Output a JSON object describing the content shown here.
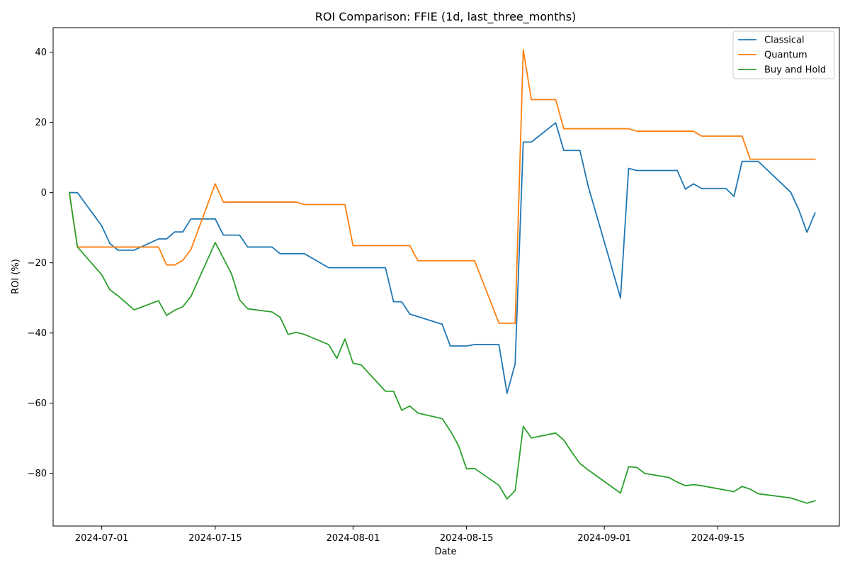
{
  "chart_data": {
    "type": "line",
    "title": "ROI Comparison: FFIE (1d, last_three_months)",
    "xlabel": "Date",
    "ylabel": "ROI (%)",
    "xlim": [
      "2024-06-25",
      "2024-09-30"
    ],
    "ylim": [
      -95,
      47
    ],
    "x_ticks": [
      "2024-07-01",
      "2024-07-15",
      "2024-08-01",
      "2024-08-15",
      "2024-09-01",
      "2024-09-15"
    ],
    "y_ticks": [
      40,
      20,
      0,
      -20,
      -40,
      -60,
      -80
    ],
    "y_tick_labels": [
      "40",
      "20",
      "0",
      "−20",
      "−40",
      "−60",
      "−80"
    ],
    "grid": false,
    "legend_position": "top-right",
    "series": [
      {
        "name": "Classical",
        "color": "#1f77b4",
        "points": [
          [
            "2024-06-27",
            0
          ],
          [
            "2024-06-28",
            0
          ],
          [
            "2024-07-01",
            -9.5
          ],
          [
            "2024-07-02",
            -14.5
          ],
          [
            "2024-07-03",
            -16.4
          ],
          [
            "2024-07-05",
            -16.4
          ],
          [
            "2024-07-08",
            -13.2
          ],
          [
            "2024-07-09",
            -13.2
          ],
          [
            "2024-07-10",
            -11.2
          ],
          [
            "2024-07-11",
            -11.2
          ],
          [
            "2024-07-12",
            -7.5
          ],
          [
            "2024-07-15",
            -7.5
          ],
          [
            "2024-07-16",
            -12.1
          ],
          [
            "2024-07-18",
            -12.1
          ],
          [
            "2024-07-19",
            -15.5
          ],
          [
            "2024-07-22",
            -15.5
          ],
          [
            "2024-07-23",
            -17.4
          ],
          [
            "2024-07-26",
            -17.4
          ],
          [
            "2024-07-29",
            -21.4
          ],
          [
            "2024-08-05",
            -21.4
          ],
          [
            "2024-08-06",
            -31.1
          ],
          [
            "2024-08-07",
            -31.1
          ],
          [
            "2024-08-08",
            -34.6
          ],
          [
            "2024-08-12",
            -37.5
          ],
          [
            "2024-08-13",
            -43.7
          ],
          [
            "2024-08-15",
            -43.7
          ],
          [
            "2024-08-16",
            -43.3
          ],
          [
            "2024-08-19",
            -43.3
          ],
          [
            "2024-08-20",
            -57.2
          ],
          [
            "2024-08-21",
            -48.8
          ],
          [
            "2024-08-22",
            14.4
          ],
          [
            "2024-08-23",
            14.4
          ],
          [
            "2024-08-26",
            19.9
          ],
          [
            "2024-08-27",
            12.0
          ],
          [
            "2024-08-29",
            12.0
          ],
          [
            "2024-08-30",
            1.9
          ],
          [
            "2024-09-03",
            -30.0
          ],
          [
            "2024-09-04",
            6.9
          ],
          [
            "2024-09-05",
            6.3
          ],
          [
            "2024-09-10",
            6.3
          ],
          [
            "2024-09-11",
            1.0
          ],
          [
            "2024-09-12",
            2.5
          ],
          [
            "2024-09-13",
            1.2
          ],
          [
            "2024-09-16",
            1.2
          ],
          [
            "2024-09-17",
            -1.1
          ],
          [
            "2024-09-18",
            8.9
          ],
          [
            "2024-09-20",
            8.9
          ],
          [
            "2024-09-24",
            0.1
          ],
          [
            "2024-09-25",
            -4.9
          ],
          [
            "2024-09-26",
            -11.3
          ],
          [
            "2024-09-27",
            -5.8
          ]
        ]
      },
      {
        "name": "Quantum",
        "color": "#ff7f0e",
        "points": [
          [
            "2024-06-27",
            0
          ],
          [
            "2024-06-28",
            -15.5
          ],
          [
            "2024-07-08",
            -15.5
          ],
          [
            "2024-07-09",
            -20.6
          ],
          [
            "2024-07-10",
            -20.6
          ],
          [
            "2024-07-11",
            -19.3
          ],
          [
            "2024-07-12",
            -16.2
          ],
          [
            "2024-07-15",
            2.5
          ],
          [
            "2024-07-16",
            -2.7
          ],
          [
            "2024-07-25",
            -2.7
          ],
          [
            "2024-07-26",
            -3.4
          ],
          [
            "2024-07-31",
            -3.4
          ],
          [
            "2024-08-01",
            -15.1
          ],
          [
            "2024-08-08",
            -15.1
          ],
          [
            "2024-08-09",
            -19.4
          ],
          [
            "2024-08-16",
            -19.4
          ],
          [
            "2024-08-19",
            -37.2
          ],
          [
            "2024-08-21",
            -37.2
          ],
          [
            "2024-08-22",
            40.7
          ],
          [
            "2024-08-23",
            26.5
          ],
          [
            "2024-08-26",
            26.5
          ],
          [
            "2024-08-27",
            18.2
          ],
          [
            "2024-09-03",
            18.2
          ],
          [
            "2024-09-04",
            18.2
          ],
          [
            "2024-09-05",
            17.5
          ],
          [
            "2024-09-12",
            17.5
          ],
          [
            "2024-09-13",
            16.1
          ],
          [
            "2024-09-18",
            16.1
          ],
          [
            "2024-09-19",
            9.5
          ],
          [
            "2024-09-27",
            9.5
          ]
        ]
      },
      {
        "name": "Buy and Hold",
        "color": "#2ca02c",
        "points": [
          [
            "2024-06-27",
            0
          ],
          [
            "2024-06-28",
            -15.5
          ],
          [
            "2024-07-01",
            -23.4
          ],
          [
            "2024-07-02",
            -27.7
          ],
          [
            "2024-07-03",
            -29.4
          ],
          [
            "2024-07-05",
            -33.4
          ],
          [
            "2024-07-08",
            -30.8
          ],
          [
            "2024-07-09",
            -35.0
          ],
          [
            "2024-07-10",
            -33.5
          ],
          [
            "2024-07-11",
            -32.5
          ],
          [
            "2024-07-12",
            -29.6
          ],
          [
            "2024-07-15",
            -14.2
          ],
          [
            "2024-07-17",
            -23.1
          ],
          [
            "2024-07-18",
            -30.5
          ],
          [
            "2024-07-19",
            -33.1
          ],
          [
            "2024-07-22",
            -34.0
          ],
          [
            "2024-07-23",
            -35.5
          ],
          [
            "2024-07-24",
            -40.4
          ],
          [
            "2024-07-25",
            -39.8
          ],
          [
            "2024-07-26",
            -40.4
          ],
          [
            "2024-07-29",
            -43.3
          ],
          [
            "2024-07-30",
            -47.2
          ],
          [
            "2024-07-31",
            -41.7
          ],
          [
            "2024-08-01",
            -48.6
          ],
          [
            "2024-08-02",
            -49.1
          ],
          [
            "2024-08-05",
            -56.6
          ],
          [
            "2024-08-06",
            -56.6
          ],
          [
            "2024-08-07",
            -62.0
          ],
          [
            "2024-08-08",
            -60.8
          ],
          [
            "2024-08-09",
            -62.8
          ],
          [
            "2024-08-12",
            -64.4
          ],
          [
            "2024-08-13",
            -67.9
          ],
          [
            "2024-08-14",
            -72.0
          ],
          [
            "2024-08-15",
            -78.7
          ],
          [
            "2024-08-16",
            -78.6
          ],
          [
            "2024-08-19",
            -83.4
          ],
          [
            "2024-08-20",
            -87.3
          ],
          [
            "2024-08-21",
            -84.9
          ],
          [
            "2024-08-22",
            -66.6
          ],
          [
            "2024-08-23",
            -69.9
          ],
          [
            "2024-08-26",
            -68.5
          ],
          [
            "2024-08-27",
            -70.5
          ],
          [
            "2024-08-28",
            -74.0
          ],
          [
            "2024-08-29",
            -77.2
          ],
          [
            "2024-08-30",
            -79.0
          ],
          [
            "2024-09-03",
            -85.6
          ],
          [
            "2024-09-04",
            -78.1
          ],
          [
            "2024-09-05",
            -78.3
          ],
          [
            "2024-09-06",
            -80.0
          ],
          [
            "2024-09-09",
            -81.2
          ],
          [
            "2024-09-10",
            -82.5
          ],
          [
            "2024-09-11",
            -83.5
          ],
          [
            "2024-09-12",
            -83.2
          ],
          [
            "2024-09-13",
            -83.5
          ],
          [
            "2024-09-17",
            -85.2
          ],
          [
            "2024-09-18",
            -83.7
          ],
          [
            "2024-09-19",
            -84.5
          ],
          [
            "2024-09-20",
            -85.8
          ],
          [
            "2024-09-24",
            -87.0
          ],
          [
            "2024-09-26",
            -88.5
          ],
          [
            "2024-09-27",
            -87.8
          ]
        ]
      }
    ]
  }
}
